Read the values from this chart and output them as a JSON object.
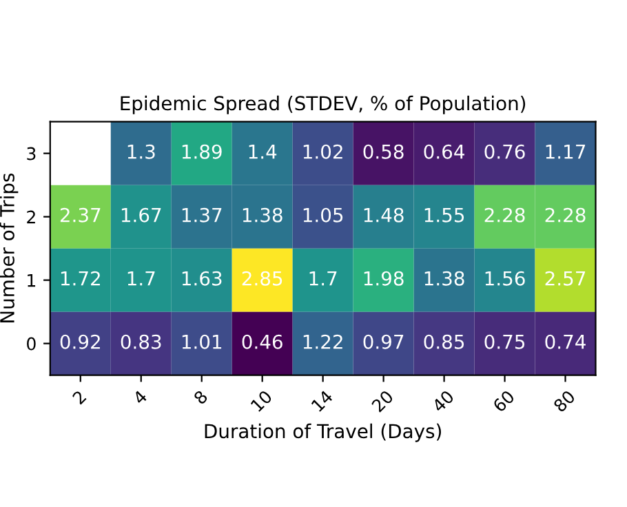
{
  "chart_data": {
    "type": "heatmap",
    "title": "Epidemic Spread (STDEV, % of Population)",
    "xlabel": "Duration of Travel (Days)",
    "ylabel": "Number of Trips",
    "categories": [
      "2",
      "4",
      "8",
      "10",
      "14",
      "20",
      "40",
      "60",
      "80"
    ],
    "y_categories": [
      "3",
      "2",
      "1",
      "0"
    ],
    "cells": [
      [
        null,
        1.3,
        1.89,
        1.4,
        1.02,
        0.58,
        0.64,
        0.76,
        1.17
      ],
      [
        2.37,
        1.67,
        1.37,
        1.38,
        1.05,
        1.48,
        1.55,
        2.28,
        2.28
      ],
      [
        1.72,
        1.7,
        1.63,
        2.85,
        1.7,
        1.98,
        1.38,
        1.56,
        2.57
      ],
      [
        0.92,
        0.83,
        1.01,
        0.46,
        1.22,
        0.97,
        0.85,
        0.75,
        0.74
      ]
    ],
    "data_labels": true
  }
}
